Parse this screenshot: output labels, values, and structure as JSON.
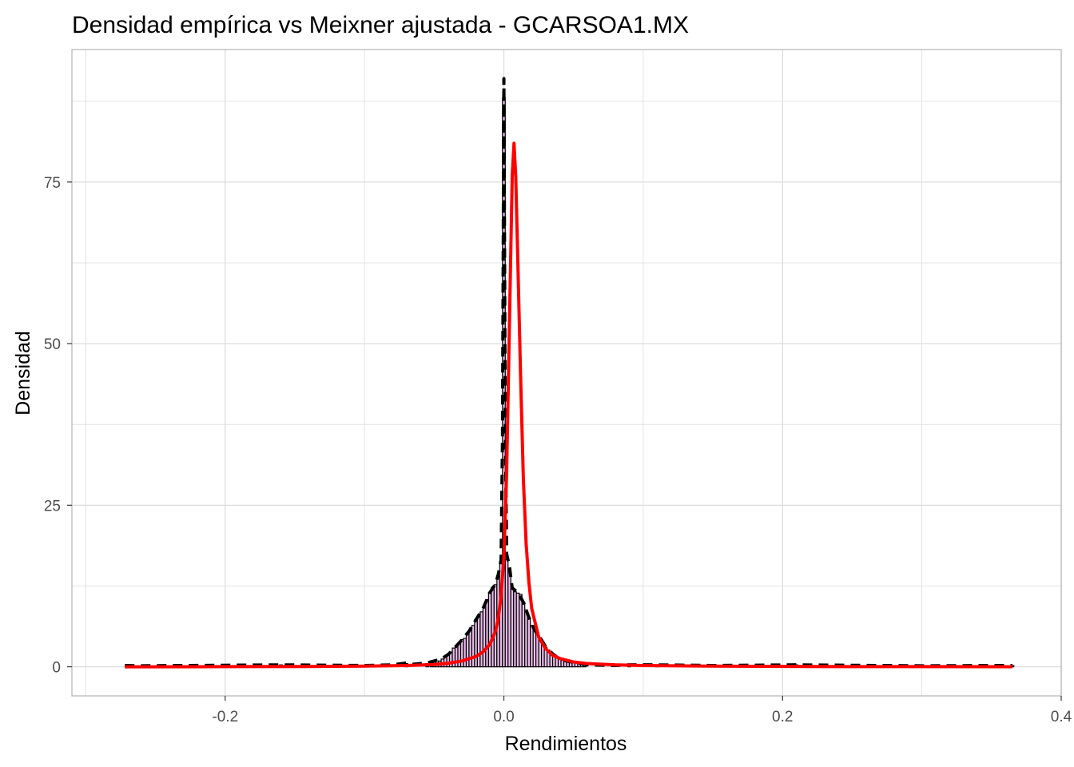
{
  "chart_data": {
    "type": "histogram-density",
    "title": "Densidad empírica vs Meixner ajustada - GCARSOA1.MX",
    "xlabel": "Rendimientos",
    "ylabel": "Densidad",
    "xlim": [
      -0.31,
      0.4
    ],
    "ylim": [
      -4.5,
      95.5
    ],
    "x_ticks": [
      -0.2,
      0.0,
      0.2,
      0.4
    ],
    "x_tick_labels": [
      "-0.2",
      "0.0",
      "0.2",
      "0.4"
    ],
    "y_ticks": [
      0,
      25,
      50,
      75
    ],
    "y_tick_labels": [
      "0",
      "25",
      "50",
      "75"
    ],
    "grid": true,
    "colors": {
      "histogram_fill": "#e8bde8",
      "histogram_stroke": "#000000",
      "empirical_density": "#000000",
      "meixner_density": "#ff0000",
      "grid": "#dcdcdc",
      "panel_border": "#b3b3b3"
    },
    "histogram": {
      "bin_width": 0.002,
      "bins": [
        {
          "x": -0.27,
          "y": 0.2
        },
        {
          "x": -0.16,
          "y": 0.3
        },
        {
          "x": -0.07,
          "y": 0.5
        },
        {
          "x": -0.055,
          "y": 0.5
        },
        {
          "x": -0.052,
          "y": 0.9
        },
        {
          "x": -0.05,
          "y": 0.7
        },
        {
          "x": -0.048,
          "y": 0.6
        },
        {
          "x": -0.046,
          "y": 0.9
        },
        {
          "x": -0.044,
          "y": 1.2
        },
        {
          "x": -0.042,
          "y": 1.5
        },
        {
          "x": -0.04,
          "y": 1.9
        },
        {
          "x": -0.038,
          "y": 2.3
        },
        {
          "x": -0.036,
          "y": 2.9
        },
        {
          "x": -0.034,
          "y": 3.3
        },
        {
          "x": -0.032,
          "y": 3.7
        },
        {
          "x": -0.03,
          "y": 4.2
        },
        {
          "x": -0.028,
          "y": 4.4
        },
        {
          "x": -0.026,
          "y": 5.2
        },
        {
          "x": -0.024,
          "y": 5.8
        },
        {
          "x": -0.022,
          "y": 6.4
        },
        {
          "x": -0.02,
          "y": 7.3
        },
        {
          "x": -0.018,
          "y": 7.8
        },
        {
          "x": -0.016,
          "y": 8.5
        },
        {
          "x": -0.014,
          "y": 9.3
        },
        {
          "x": -0.012,
          "y": 10.4
        },
        {
          "x": -0.01,
          "y": 11.5
        },
        {
          "x": -0.008,
          "y": 12.3
        },
        {
          "x": -0.006,
          "y": 12.7
        },
        {
          "x": -0.004,
          "y": 14.1
        },
        {
          "x": -0.002,
          "y": 16.3
        },
        {
          "x": 0.0,
          "y": 88.0
        },
        {
          "x": 0.002,
          "y": 16.6
        },
        {
          "x": 0.004,
          "y": 15.2
        },
        {
          "x": 0.006,
          "y": 12.0
        },
        {
          "x": 0.008,
          "y": 11.6
        },
        {
          "x": 0.01,
          "y": 11.4
        },
        {
          "x": 0.012,
          "y": 11.2
        },
        {
          "x": 0.014,
          "y": 10.0
        },
        {
          "x": 0.016,
          "y": 8.8
        },
        {
          "x": 0.018,
          "y": 7.5
        },
        {
          "x": 0.02,
          "y": 6.4
        },
        {
          "x": 0.022,
          "y": 5.6
        },
        {
          "x": 0.024,
          "y": 5.1
        },
        {
          "x": 0.026,
          "y": 4.5
        },
        {
          "x": 0.028,
          "y": 3.8
        },
        {
          "x": 0.03,
          "y": 3.0
        },
        {
          "x": 0.032,
          "y": 2.6
        },
        {
          "x": 0.034,
          "y": 2.2
        },
        {
          "x": 0.036,
          "y": 1.8
        },
        {
          "x": 0.038,
          "y": 1.4
        },
        {
          "x": 0.04,
          "y": 1.2
        },
        {
          "x": 0.042,
          "y": 1.0
        },
        {
          "x": 0.044,
          "y": 1.0
        },
        {
          "x": 0.046,
          "y": 0.8
        },
        {
          "x": 0.048,
          "y": 0.7
        },
        {
          "x": 0.05,
          "y": 0.7
        },
        {
          "x": 0.052,
          "y": 0.6
        },
        {
          "x": 0.054,
          "y": 0.5
        },
        {
          "x": 0.056,
          "y": 0.4
        },
        {
          "x": 0.058,
          "y": 0.3
        },
        {
          "x": 0.09,
          "y": 0.3
        },
        {
          "x": 0.11,
          "y": 0.3
        },
        {
          "x": 0.21,
          "y": 0.3
        },
        {
          "x": 0.365,
          "y": 0.2
        }
      ]
    },
    "series": [
      {
        "style": "dashed",
        "color": "#000000",
        "points": [
          [
            -0.272,
            0.2
          ],
          [
            -0.26,
            0.15
          ],
          [
            -0.16,
            0.3
          ],
          [
            -0.1,
            0.2
          ],
          [
            -0.08,
            0.3
          ],
          [
            -0.07,
            0.6
          ],
          [
            -0.065,
            0.4
          ],
          [
            -0.055,
            0.6
          ],
          [
            -0.05,
            0.9
          ],
          [
            -0.045,
            1.2
          ],
          [
            -0.04,
            1.9
          ],
          [
            -0.035,
            3.0
          ],
          [
            -0.03,
            4.2
          ],
          [
            -0.025,
            5.5
          ],
          [
            -0.02,
            7.3
          ],
          [
            -0.015,
            9.0
          ],
          [
            -0.01,
            11.5
          ],
          [
            -0.006,
            12.8
          ],
          [
            -0.004,
            14.3
          ],
          [
            -0.002,
            16.5
          ],
          [
            -0.001,
            35
          ],
          [
            0.0,
            91
          ],
          [
            0.001,
            38
          ],
          [
            0.002,
            17.5
          ],
          [
            0.004,
            15.5
          ],
          [
            0.006,
            12.2
          ],
          [
            0.01,
            11.5
          ],
          [
            0.014,
            10.0
          ],
          [
            0.018,
            7.6
          ],
          [
            0.022,
            5.7
          ],
          [
            0.026,
            4.5
          ],
          [
            0.03,
            3.1
          ],
          [
            0.035,
            2.0
          ],
          [
            0.04,
            1.2
          ],
          [
            0.045,
            0.9
          ],
          [
            0.05,
            0.7
          ],
          [
            0.055,
            0.5
          ],
          [
            0.06,
            0.3
          ],
          [
            0.08,
            0.2
          ],
          [
            0.09,
            0.3
          ],
          [
            0.11,
            0.3
          ],
          [
            0.15,
            0.2
          ],
          [
            0.21,
            0.3
          ],
          [
            0.3,
            0.15
          ],
          [
            0.365,
            0.2
          ]
        ]
      },
      {
        "style": "solid",
        "color": "#ff0000",
        "points": [
          [
            -0.272,
            0.0
          ],
          [
            -0.2,
            0.02
          ],
          [
            -0.15,
            0.04
          ],
          [
            -0.1,
            0.1
          ],
          [
            -0.07,
            0.2
          ],
          [
            -0.05,
            0.35
          ],
          [
            -0.04,
            0.55
          ],
          [
            -0.03,
            0.9
          ],
          [
            -0.02,
            1.6
          ],
          [
            -0.015,
            2.3
          ],
          [
            -0.01,
            3.5
          ],
          [
            -0.006,
            5.5
          ],
          [
            -0.004,
            7.5
          ],
          [
            -0.002,
            11
          ],
          [
            0.0,
            17
          ],
          [
            0.002,
            30
          ],
          [
            0.004,
            53
          ],
          [
            0.006,
            76
          ],
          [
            0.0073,
            81
          ],
          [
            0.0085,
            76
          ],
          [
            0.01,
            63
          ],
          [
            0.012,
            45
          ],
          [
            0.014,
            29
          ],
          [
            0.016,
            19
          ],
          [
            0.018,
            13
          ],
          [
            0.02,
            9
          ],
          [
            0.025,
            4.6
          ],
          [
            0.03,
            2.8
          ],
          [
            0.035,
            1.8
          ],
          [
            0.04,
            1.3
          ],
          [
            0.05,
            0.75
          ],
          [
            0.06,
            0.5
          ],
          [
            0.08,
            0.3
          ],
          [
            0.1,
            0.2
          ],
          [
            0.15,
            0.1
          ],
          [
            0.2,
            0.06
          ],
          [
            0.25,
            0.03
          ],
          [
            0.3,
            0.02
          ],
          [
            0.365,
            0.01
          ]
        ]
      }
    ]
  }
}
